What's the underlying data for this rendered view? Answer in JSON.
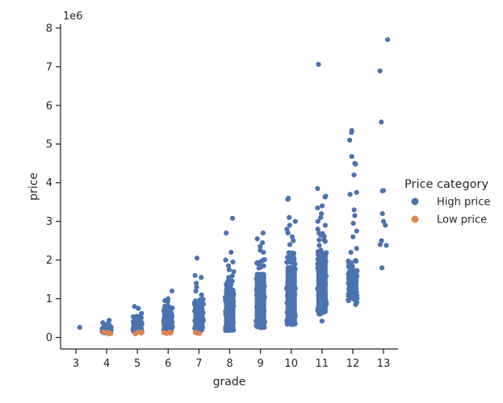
{
  "chart_data": {
    "type": "scatter",
    "style": "categorical strip plot with jitter",
    "xlabel": "grade",
    "ylabel": "price",
    "y_offset_label": "1e6",
    "categories": [
      "3",
      "4",
      "5",
      "6",
      "7",
      "8",
      "9",
      "10",
      "11",
      "12",
      "13"
    ],
    "y_ticks": [
      0,
      1,
      2,
      3,
      4,
      5,
      6,
      7,
      8
    ],
    "ylim": [
      -0.3,
      8.1
    ],
    "y_unit_multiplier": 1000000,
    "legend": {
      "title": "Price category",
      "placement": "center-right",
      "entries": [
        {
          "label": "High price",
          "color": "#4c72b0"
        },
        {
          "label": "Low price",
          "color": "#dd8452"
        }
      ]
    },
    "series": [
      {
        "name": "High price",
        "color": "#4c72b0",
        "dense_ranges": [
          {
            "grade": "4",
            "min": 0.12,
            "max": 0.33
          },
          {
            "grade": "5",
            "min": 0.14,
            "max": 0.55
          },
          {
            "grade": "6",
            "min": 0.15,
            "max": 0.85
          },
          {
            "grade": "7",
            "min": 0.16,
            "max": 1.0
          },
          {
            "grade": "8",
            "min": 0.18,
            "max": 1.6
          },
          {
            "grade": "9",
            "min": 0.25,
            "max": 2.1
          },
          {
            "grade": "10",
            "min": 0.33,
            "max": 2.3
          },
          {
            "grade": "11",
            "min": 0.6,
            "max": 2.7
          },
          {
            "grade": "12",
            "min": 0.95,
            "max": 2.0
          }
        ],
        "points": [
          {
            "grade": "3",
            "y": 0.26
          },
          {
            "grade": "4",
            "y": 0.44
          },
          {
            "grade": "4",
            "y": 0.38
          },
          {
            "grade": "4",
            "y": 0.36
          },
          {
            "grade": "5",
            "y": 0.8
          },
          {
            "grade": "5",
            "y": 0.75
          },
          {
            "grade": "5",
            "y": 0.62
          },
          {
            "grade": "6",
            "y": 1.2
          },
          {
            "grade": "6",
            "y": 1.0
          },
          {
            "grade": "6",
            "y": 0.95
          },
          {
            "grade": "6",
            "y": 0.92
          },
          {
            "grade": "7",
            "y": 2.05
          },
          {
            "grade": "7",
            "y": 1.6
          },
          {
            "grade": "7",
            "y": 1.55
          },
          {
            "grade": "7",
            "y": 1.4
          },
          {
            "grade": "7",
            "y": 1.3
          },
          {
            "grade": "7",
            "y": 1.2
          },
          {
            "grade": "7",
            "y": 1.1
          },
          {
            "grade": "8",
            "y": 3.08
          },
          {
            "grade": "8",
            "y": 2.7
          },
          {
            "grade": "8",
            "y": 2.2
          },
          {
            "grade": "8",
            "y": 2.0
          },
          {
            "grade": "8",
            "y": 1.95
          },
          {
            "grade": "8",
            "y": 1.85
          },
          {
            "grade": "8",
            "y": 1.75
          },
          {
            "grade": "8",
            "y": 1.7
          },
          {
            "grade": "9",
            "y": 2.7
          },
          {
            "grade": "9",
            "y": 2.55
          },
          {
            "grade": "9",
            "y": 2.45
          },
          {
            "grade": "9",
            "y": 2.35
          },
          {
            "grade": "9",
            "y": 2.25
          },
          {
            "grade": "9",
            "y": 2.2
          },
          {
            "grade": "10",
            "y": 3.6
          },
          {
            "grade": "10",
            "y": 3.57
          },
          {
            "grade": "10",
            "y": 3.1
          },
          {
            "grade": "10",
            "y": 3.0
          },
          {
            "grade": "10",
            "y": 2.9
          },
          {
            "grade": "10",
            "y": 2.8
          },
          {
            "grade": "10",
            "y": 2.7
          },
          {
            "grade": "10",
            "y": 2.6
          },
          {
            "grade": "10",
            "y": 2.5
          },
          {
            "grade": "10",
            "y": 2.4
          },
          {
            "grade": "11",
            "y": 7.06
          },
          {
            "grade": "11",
            "y": 3.85
          },
          {
            "grade": "11",
            "y": 3.65
          },
          {
            "grade": "11",
            "y": 3.63
          },
          {
            "grade": "11",
            "y": 3.4
          },
          {
            "grade": "11",
            "y": 3.35
          },
          {
            "grade": "11",
            "y": 3.2
          },
          {
            "grade": "11",
            "y": 3.1
          },
          {
            "grade": "11",
            "y": 3.0
          },
          {
            "grade": "11",
            "y": 2.9
          },
          {
            "grade": "11",
            "y": 2.8
          },
          {
            "grade": "11",
            "y": 0.42
          },
          {
            "grade": "12",
            "y": 5.35
          },
          {
            "grade": "12",
            "y": 5.3
          },
          {
            "grade": "12",
            "y": 5.1
          },
          {
            "grade": "12",
            "y": 4.68
          },
          {
            "grade": "12",
            "y": 4.5
          },
          {
            "grade": "12",
            "y": 4.48
          },
          {
            "grade": "12",
            "y": 4.2
          },
          {
            "grade": "12",
            "y": 3.75
          },
          {
            "grade": "12",
            "y": 3.7
          },
          {
            "grade": "12",
            "y": 3.3
          },
          {
            "grade": "12",
            "y": 3.15
          },
          {
            "grade": "12",
            "y": 2.95
          },
          {
            "grade": "12",
            "y": 2.75
          },
          {
            "grade": "12",
            "y": 2.6
          },
          {
            "grade": "12",
            "y": 2.3
          },
          {
            "grade": "12",
            "y": 2.2
          },
          {
            "grade": "12",
            "y": 0.9
          },
          {
            "grade": "12",
            "y": 0.85
          },
          {
            "grade": "13",
            "y": 7.7
          },
          {
            "grade": "13",
            "y": 6.89
          },
          {
            "grade": "13",
            "y": 5.57
          },
          {
            "grade": "13",
            "y": 3.8
          },
          {
            "grade": "13",
            "y": 3.79
          },
          {
            "grade": "13",
            "y": 3.2
          },
          {
            "grade": "13",
            "y": 3.0
          },
          {
            "grade": "13",
            "y": 2.9
          },
          {
            "grade": "13",
            "y": 2.5
          },
          {
            "grade": "13",
            "y": 2.4
          },
          {
            "grade": "13",
            "y": 2.38
          },
          {
            "grade": "13",
            "y": 1.8
          }
        ]
      },
      {
        "name": "Low price",
        "color": "#dd8452",
        "points": [
          {
            "grade": "4",
            "y": 0.1
          },
          {
            "grade": "4",
            "y": 0.12
          },
          {
            "grade": "4",
            "y": 0.14
          },
          {
            "grade": "4",
            "y": 0.09
          },
          {
            "grade": "4",
            "y": 0.13
          },
          {
            "grade": "5",
            "y": 0.09
          },
          {
            "grade": "5",
            "y": 0.11
          },
          {
            "grade": "5",
            "y": 0.13
          },
          {
            "grade": "5",
            "y": 0.1
          },
          {
            "grade": "5",
            "y": 0.14
          },
          {
            "grade": "6",
            "y": 0.1
          },
          {
            "grade": "6",
            "y": 0.12
          },
          {
            "grade": "6",
            "y": 0.14
          },
          {
            "grade": "6",
            "y": 0.11
          },
          {
            "grade": "7",
            "y": 0.1
          },
          {
            "grade": "7",
            "y": 0.12
          },
          {
            "grade": "7",
            "y": 0.14
          },
          {
            "grade": "7",
            "y": 0.11
          }
        ]
      }
    ]
  }
}
